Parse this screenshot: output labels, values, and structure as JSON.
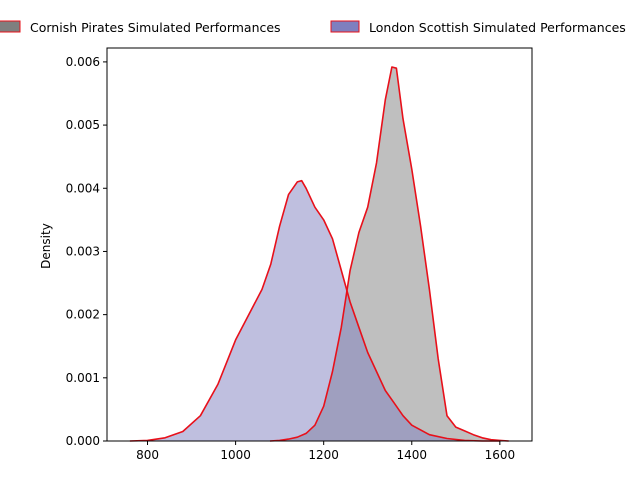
{
  "chart_data": {
    "type": "area",
    "xlabel": "",
    "ylabel": "Density",
    "xlim": [
      708,
      1673
    ],
    "ylim": [
      0,
      0.00622
    ],
    "xticks": [
      800,
      1000,
      1200,
      1400,
      1600
    ],
    "yticks": [
      0.0,
      0.001,
      0.002,
      0.003,
      0.004,
      0.005,
      0.006
    ],
    "ytick_labels": [
      "0.000",
      "0.001",
      "0.002",
      "0.003",
      "0.004",
      "0.005",
      "0.006"
    ],
    "grid": false,
    "legend_position": "top",
    "series": [
      {
        "name": "Cornish Pirates Simulated Performances",
        "fill": "#7f7f7f",
        "edge": "#e8101a",
        "x": [
          1078,
          1100,
          1120,
          1140,
          1160,
          1180,
          1200,
          1220,
          1240,
          1260,
          1280,
          1300,
          1320,
          1340,
          1355,
          1365,
          1380,
          1400,
          1420,
          1440,
          1460,
          1480,
          1500,
          1520,
          1540,
          1560,
          1580,
          1600,
          1620
        ],
        "y": [
          0.0,
          1e-05,
          3e-05,
          6e-05,
          0.00012,
          0.00025,
          0.00055,
          0.0011,
          0.0018,
          0.0027,
          0.0033,
          0.0037,
          0.0044,
          0.0054,
          0.00592,
          0.0059,
          0.0051,
          0.0043,
          0.0034,
          0.0024,
          0.0013,
          0.0004,
          0.00022,
          0.00016,
          0.0001,
          5e-05,
          2e-05,
          1e-05,
          0.0
        ]
      },
      {
        "name": "London Scottish Simulated Performances",
        "fill": "#7f7fbf",
        "edge": "#e8101a",
        "x": [
          760,
          800,
          840,
          880,
          920,
          960,
          1000,
          1030,
          1060,
          1080,
          1100,
          1120,
          1140,
          1150,
          1160,
          1180,
          1200,
          1220,
          1240,
          1260,
          1280,
          1300,
          1320,
          1340,
          1360,
          1380,
          1400,
          1440,
          1480,
          1520,
          1560,
          1600
        ],
        "y": [
          0.0,
          1e-05,
          5e-05,
          0.00015,
          0.0004,
          0.0009,
          0.0016,
          0.002,
          0.0024,
          0.0028,
          0.0034,
          0.0039,
          0.0041,
          0.00412,
          0.004,
          0.0037,
          0.0035,
          0.0032,
          0.0027,
          0.0022,
          0.0018,
          0.0014,
          0.0011,
          0.0008,
          0.0006,
          0.0004,
          0.00025,
          0.0001,
          4e-05,
          1e-05,
          0.0,
          0.0
        ]
      }
    ]
  }
}
